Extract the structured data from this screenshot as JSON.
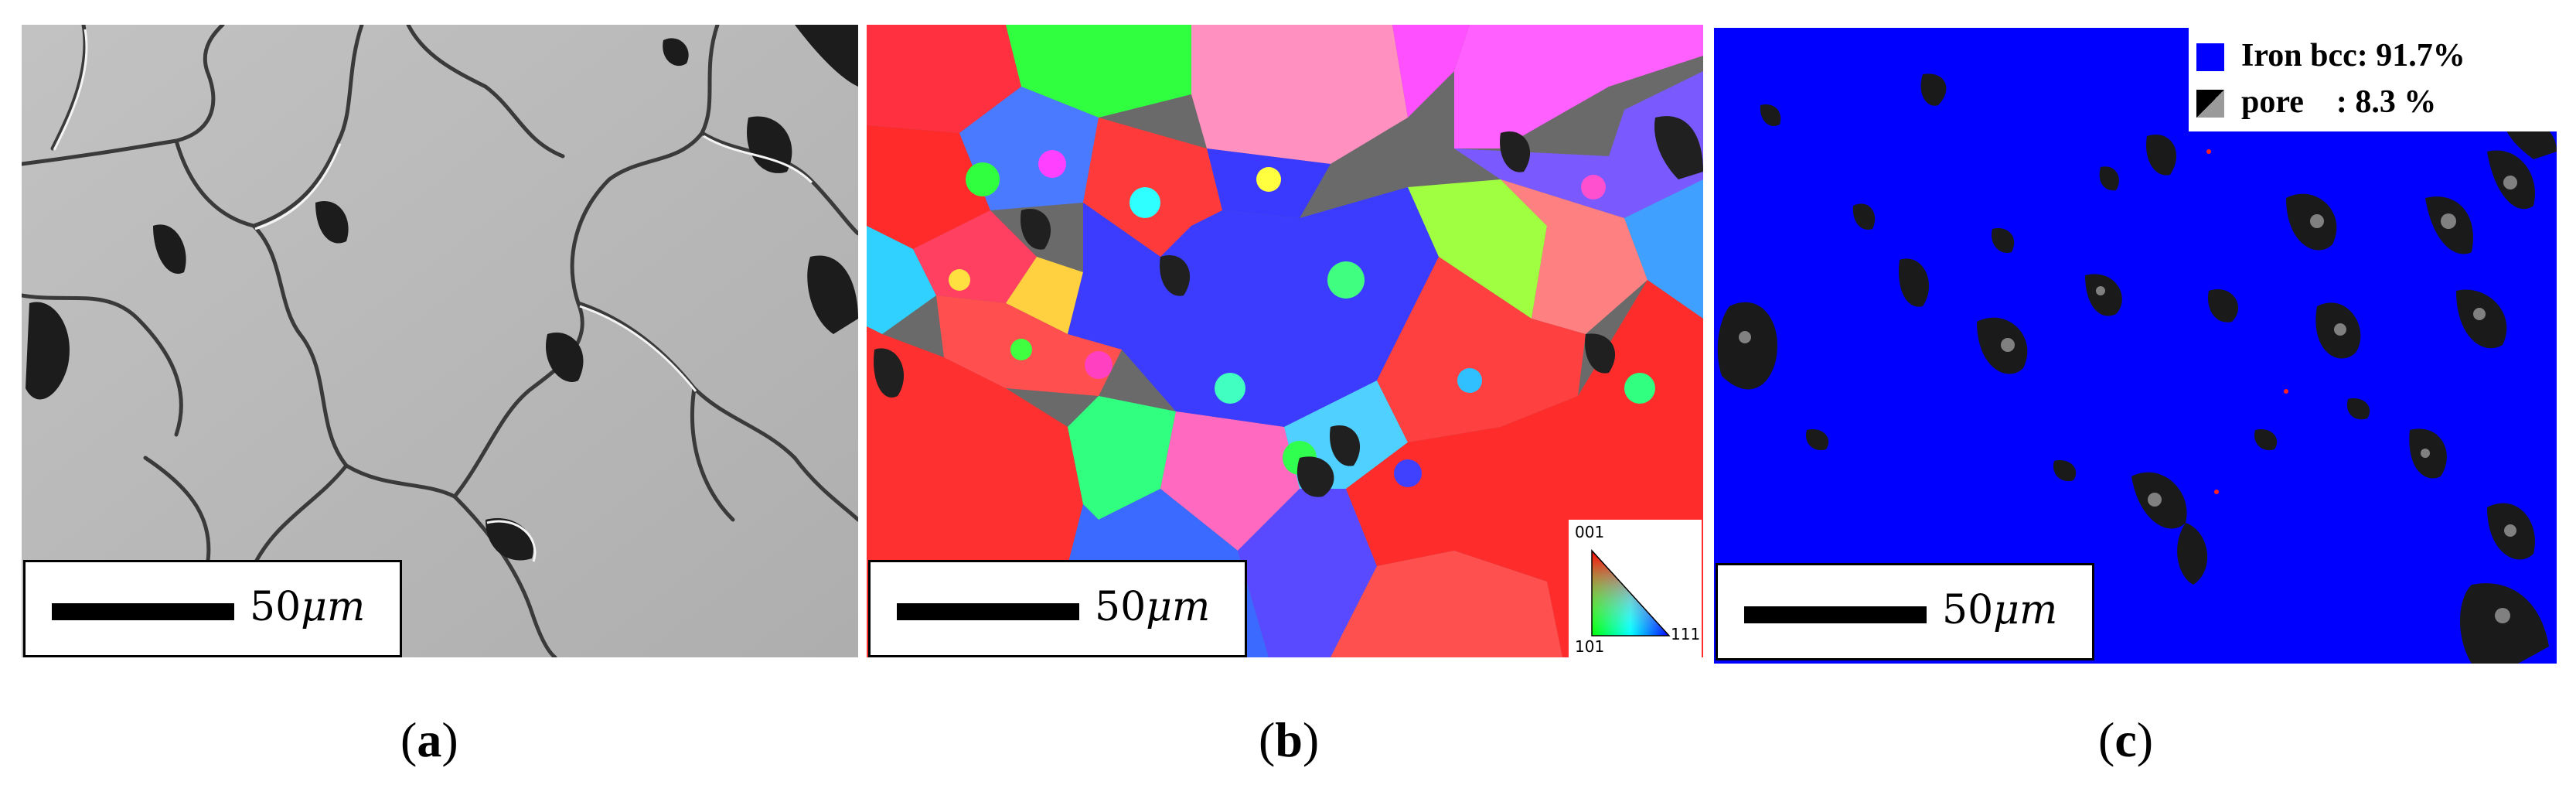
{
  "panels": [
    {
      "id": "a",
      "caption_letter": "a",
      "scale_bar": "50",
      "scale_unit": "μm"
    },
    {
      "id": "b",
      "caption_letter": "b",
      "scale_bar": "50",
      "scale_unit": "μm",
      "ipf_key": {
        "top": "001",
        "bottom_left": "101",
        "bottom_right": "111"
      }
    },
    {
      "id": "c",
      "caption_letter": "c",
      "scale_bar": "50",
      "scale_unit": "μm",
      "legend": [
        {
          "label": "Iron bcc: 91.7%",
          "color": "#0000ff"
        },
        {
          "label": "pore    : 8.3 %",
          "color": "#555555"
        }
      ]
    }
  ],
  "colors": {
    "phase_iron": "#0000ff",
    "pore": "#1a1a1a",
    "sem_gray": "#b9b9b9"
  }
}
